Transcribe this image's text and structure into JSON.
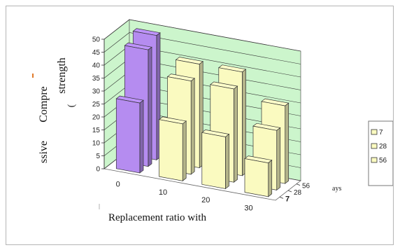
{
  "chart_data": {
    "type": "bar",
    "title": "",
    "categories": [
      "0",
      "10",
      "20",
      "30"
    ],
    "series": [
      {
        "name": "7",
        "values": [
          27,
          22,
          20,
          13
        ]
      },
      {
        "name": "28",
        "values": [
          45,
          36,
          36,
          23
        ]
      },
      {
        "name": "56",
        "values": [
          48,
          40,
          40,
          30
        ]
      }
    ],
    "depth_label": "ays",
    "ylabel_lines": [
      "Compre",
      "ssive",
      "strength",
      "("
    ],
    "xlabel": "Replacement ratio with",
    "yticks": [
      "0",
      "5",
      "10",
      "15",
      "20",
      "25",
      "30",
      "35",
      "40",
      "45",
      "50"
    ],
    "ylim": [
      0,
      50
    ],
    "grid": true,
    "legend_position": "right",
    "colors": {
      "wall": "#ccf5cc",
      "bar_first_category": "#b58cf0",
      "bar_other": "#fafac0",
      "grid": "#333333"
    }
  }
}
